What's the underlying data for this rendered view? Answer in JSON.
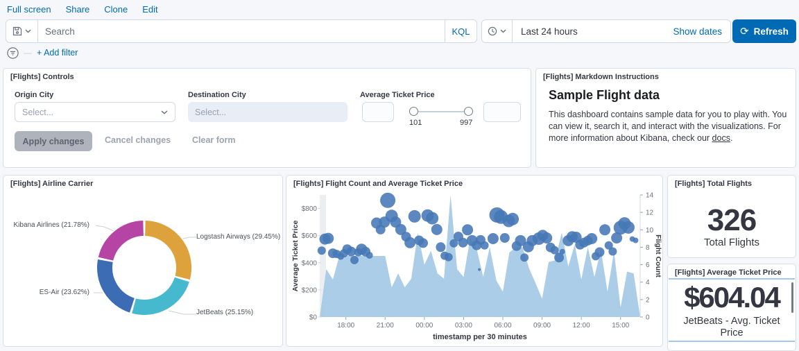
{
  "topnav": {
    "links": [
      "Full screen",
      "Share",
      "Clone",
      "Edit"
    ]
  },
  "searchbar": {
    "placeholder": "Search",
    "kql_label": "KQL",
    "time_value": "Last 24 hours",
    "show_dates_label": "Show dates",
    "refresh_label": "Refresh"
  },
  "filter_bar": {
    "add_filter_label": "+ Add filter"
  },
  "controls": {
    "title": "[Flights] Controls",
    "origin_label": "Origin City",
    "origin_placeholder": "Select...",
    "dest_label": "Destination City",
    "dest_placeholder": "Select...",
    "price_label": "Average Ticket Price",
    "slider_min": "101",
    "slider_max": "997",
    "apply_label": "Apply changes",
    "cancel_label": "Cancel changes",
    "clear_label": "Clear form"
  },
  "markdown": {
    "title": "[Flights] Markdown Instructions",
    "heading": "Sample Flight data",
    "body_pre": "This dashboard contains sample data for you to play with. You can view it, search it, and interact with the visualizations. For more information about Kibana, check our ",
    "link_text": "docs",
    "body_post": "."
  },
  "pie_panel": {
    "title": "[Flights] Airline Carrier"
  },
  "combo_panel": {
    "title": "[Flights] Flight Count and Average Ticket Price"
  },
  "total_panel": {
    "title": "[Flights] Total Flights",
    "value": "326",
    "label": "Total Flights"
  },
  "avg_panel": {
    "title": "[Flights] Average Ticket Price",
    "value": "$604.04",
    "label": "JetBeats - Avg. Ticket Price"
  },
  "chart_data": [
    {
      "type": "pie",
      "title": "[Flights] Airline Carrier",
      "donut": true,
      "start_angle": "top",
      "direction": "clockwise",
      "slices": [
        {
          "label": "Logstash Airways",
          "percent": 29.45,
          "color": "#DEA23C"
        },
        {
          "label": "JetBeats",
          "percent": 25.15,
          "color": "#47B9CE"
        },
        {
          "label": "ES-Air",
          "percent": 23.62,
          "color": "#3C6CB4"
        },
        {
          "label": "Kibana Airlines",
          "percent": 21.78,
          "color": "#B544A4"
        }
      ]
    },
    {
      "type": "combo",
      "title": "[Flights] Flight Count and Average Ticket Price",
      "xlabel": "timestamp per 30 minutes",
      "grid": false,
      "x_ticks": [
        {
          "i": 4,
          "label": "18:00"
        },
        {
          "i": 10,
          "label": "21:00"
        },
        {
          "i": 16,
          "label": "00:00"
        },
        {
          "i": 22,
          "label": "03:00"
        },
        {
          "i": 28,
          "label": "06:00"
        },
        {
          "i": 34,
          "label": "09:00"
        },
        {
          "i": 40,
          "label": "12:00"
        },
        {
          "i": 46,
          "label": "15:00"
        }
      ],
      "y_left": {
        "title": "Average Ticket Price",
        "max": 900,
        "ticks": [
          {
            "v": 0,
            "label": "$0"
          },
          {
            "v": 200,
            "label": "$200"
          },
          {
            "v": 400,
            "label": "$400"
          },
          {
            "v": 600,
            "label": "$600"
          },
          {
            "v": 800,
            "label": "$800"
          }
        ]
      },
      "y_right": {
        "title": "Flight Count",
        "max": 14,
        "ticks": [
          0,
          2,
          4,
          6,
          8,
          10,
          12,
          14
        ]
      },
      "series": [
        {
          "name": "Flight Count",
          "kind": "area",
          "axis": "right",
          "color": "#A7CAE6",
          "values": [
            0,
            5.5,
            4.3,
            7,
            7,
            7,
            7,
            7,
            7,
            7,
            7,
            3.4,
            5,
            3.4,
            4.4,
            9.6,
            6,
            7.6,
            5,
            4.4,
            14,
            5.5,
            4.6,
            9,
            7.8,
            4.6,
            8,
            4.2,
            2.9,
            7.4,
            8,
            8,
            5.6,
            3.9,
            2.1,
            6.3,
            6.5,
            9.7,
            5.8,
            8.3,
            4.3,
            8,
            4.6,
            7.7,
            2.9,
            7.5,
            1.1,
            5.2,
            5,
            0
          ]
        },
        {
          "name": "Average Ticket Price",
          "kind": "bubble",
          "axis": "left",
          "color": "#4577B6",
          "points": [
            [
              0.3,
              490,
              6
            ],
            [
              0.8,
              575,
              8
            ],
            [
              1.3,
              580,
              8
            ],
            [
              2,
              470,
              7
            ],
            [
              2.6,
              465,
              6
            ],
            [
              3.2,
              447,
              5
            ],
            [
              3.7,
              470,
              6
            ],
            [
              4.2,
              500,
              7
            ],
            [
              4.8,
              483,
              7
            ],
            [
              5.3,
              420,
              6
            ],
            [
              5.9,
              478,
              6
            ],
            [
              6.4,
              500,
              8
            ],
            [
              7,
              482,
              7
            ],
            [
              7.6,
              455,
              5
            ],
            [
              8.7,
              693,
              8
            ],
            [
              9.3,
              645,
              7
            ],
            [
              9.9,
              700,
              8
            ],
            [
              10.4,
              860,
              11
            ],
            [
              11,
              745,
              9
            ],
            [
              11.6,
              700,
              8
            ],
            [
              12.4,
              645,
              8
            ],
            [
              13.2,
              592,
              7
            ],
            [
              13.8,
              548,
              8
            ],
            [
              14.5,
              742,
              9
            ],
            [
              15.2,
              565,
              7
            ],
            [
              15.8,
              545,
              7
            ],
            [
              16.5,
              748,
              9
            ],
            [
              17.2,
              728,
              9
            ],
            [
              17.9,
              645,
              8
            ],
            [
              18.5,
              515,
              7
            ],
            [
              19.1,
              452,
              6
            ],
            [
              19.7,
              442,
              6
            ],
            [
              20.5,
              543,
              6
            ],
            [
              21.2,
              593,
              7
            ],
            [
              21.9,
              548,
              7
            ],
            [
              22.6,
              643,
              8
            ],
            [
              23.3,
              563,
              8
            ],
            [
              24,
              528,
              7
            ],
            [
              24.4,
              350,
              2
            ],
            [
              24.6,
              568,
              7
            ],
            [
              25.2,
              528,
              6
            ],
            [
              26.5,
              578,
              8
            ],
            [
              27.1,
              752,
              11
            ],
            [
              27.7,
              738,
              10
            ],
            [
              28.3,
              583,
              7
            ],
            [
              28.9,
              708,
              9
            ],
            [
              29.5,
              722,
              9
            ],
            [
              30.1,
              523,
              7
            ],
            [
              30.7,
              563,
              8
            ],
            [
              31.3,
              438,
              6
            ],
            [
              31.9,
              518,
              8
            ],
            [
              32.5,
              563,
              8
            ],
            [
              33.5,
              578,
              9
            ],
            [
              34.1,
              602,
              8
            ],
            [
              34.7,
              583,
              8
            ],
            [
              35.3,
              513,
              7
            ],
            [
              35.9,
              493,
              6
            ],
            [
              36.6,
              438,
              7
            ],
            [
              37.1,
              482,
              4
            ],
            [
              38,
              563,
              8
            ],
            [
              38.6,
              592,
              8
            ],
            [
              39.2,
              588,
              8
            ],
            [
              39.8,
              533,
              7
            ],
            [
              40.4,
              548,
              7
            ],
            [
              41,
              563,
              7
            ],
            [
              41.6,
              578,
              8
            ],
            [
              42.2,
              448,
              6
            ],
            [
              42.8,
              478,
              7
            ],
            [
              43.6,
              643,
              8
            ],
            [
              44.2,
              528,
              6
            ],
            [
              44.8,
              483,
              6
            ],
            [
              45.4,
              583,
              8
            ],
            [
              46,
              658,
              10
            ],
            [
              46.6,
              690,
              9
            ],
            [
              47.2,
              660,
              9
            ],
            [
              47.8,
              575,
              4
            ],
            [
              48.3,
              565,
              4
            ]
          ]
        }
      ]
    }
  ]
}
